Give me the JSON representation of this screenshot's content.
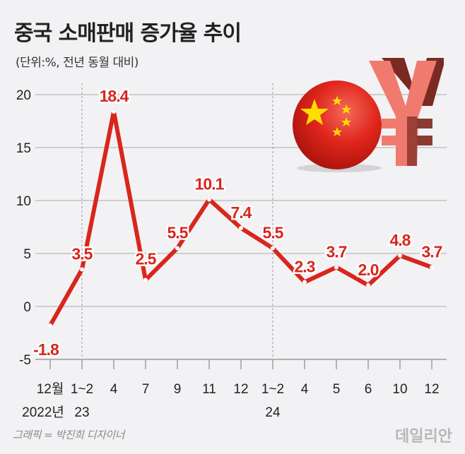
{
  "title": "중국 소매판매 증가율 추이",
  "subtitle": "(단위:%, 전년 동월 대비)",
  "credit": "그래픽 = 박진희 디자이너",
  "logo": "데일리안",
  "colors": {
    "line": "#d9261c",
    "background": "#f2f2f4",
    "grid": "#b0b0b0"
  },
  "illustration": [
    "china-flag-sphere",
    "yuan-symbol"
  ],
  "chart_data": {
    "type": "line",
    "title": "중국 소매판매 증가율 추이",
    "ylabel": "(단위:%, 전년 동월 대비)",
    "categories": [
      "12월",
      "1~2",
      "4",
      "7",
      "9",
      "11",
      "12",
      "1~2",
      "4",
      "5",
      "6",
      "10",
      "12"
    ],
    "year_labels": [
      {
        "index": 0,
        "label": "2022년"
      },
      {
        "index": 1,
        "label": "23"
      },
      {
        "index": 7,
        "label": "24"
      }
    ],
    "year_dividers": [
      1,
      7
    ],
    "values": [
      -1.8,
      3.5,
      18.4,
      2.5,
      5.5,
      10.1,
      7.4,
      5.5,
      2.3,
      3.7,
      2.0,
      4.8,
      3.7
    ],
    "data_labels": [
      "-1.8",
      "3.5",
      "18.4",
      "2.5",
      "5.5",
      "10.1",
      "7.4",
      "5.5",
      "2.3",
      "3.7",
      "2.0",
      "4.8",
      "3.7"
    ],
    "yticks": [
      "20",
      "15",
      "10",
      "5",
      "0",
      "-5"
    ],
    "ylim": [
      -5,
      20
    ],
    "grid": true
  }
}
